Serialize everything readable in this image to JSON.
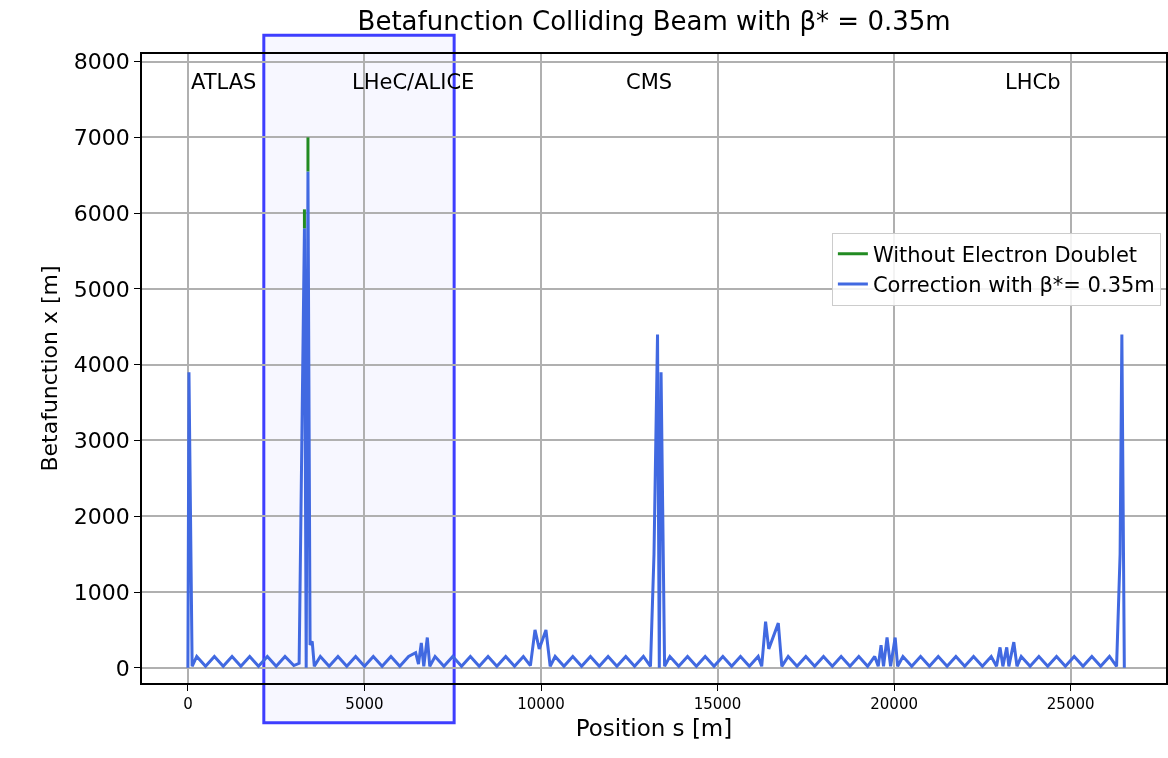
{
  "chart_data": {
    "type": "line",
    "title": "Betafunction Colliding Beam with β* = 0.35m",
    "xlabel": "Position s [m]",
    "ylabel": "Betafunction x [m]",
    "series": [
      {
        "name": "Without Electron Doublet",
        "color": "#228b22",
        "x": [
          3300,
          3300,
          3350,
          3400,
          3400
        ],
        "values": [
          5800,
          6050,
          null,
          6550,
          7000
        ]
      },
      {
        "name": "Correction with β*= 0.35m",
        "color": "#4169e1",
        "x": [
          0,
          30,
          120,
          250,
          500,
          750,
          1000,
          1250,
          1500,
          1750,
          2000,
          2250,
          2500,
          2750,
          3000,
          3150,
          3300,
          3350,
          3400,
          3460,
          3520,
          3580,
          3750,
          4000,
          4250,
          4500,
          4750,
          5000,
          5250,
          5500,
          5750,
          6000,
          6250,
          6450,
          6530,
          6610,
          6680,
          6780,
          6850,
          7000,
          7250,
          7500,
          7750,
          8000,
          8250,
          8500,
          8750,
          9000,
          9250,
          9500,
          9700,
          9830,
          9950,
          10140,
          10260,
          10400,
          10650,
          10900,
          11150,
          11400,
          11650,
          11900,
          12150,
          12400,
          12650,
          12900,
          13100,
          13200,
          13300,
          13350,
          13400,
          13500,
          13650,
          13900,
          14150,
          14400,
          14650,
          14900,
          15150,
          15400,
          15650,
          15900,
          16150,
          16250,
          16360,
          16450,
          16720,
          16820,
          17000,
          17250,
          17500,
          17750,
          18000,
          18250,
          18500,
          18750,
          19000,
          19250,
          19450,
          19550,
          19630,
          19700,
          19800,
          19900,
          20030,
          20100,
          20250,
          20500,
          20750,
          21000,
          21250,
          21500,
          21750,
          22000,
          22250,
          22500,
          22750,
          22900,
          23000,
          23080,
          23190,
          23250,
          23390,
          23480,
          23600,
          23850,
          24100,
          24350,
          24600,
          24850,
          25100,
          25350,
          25600,
          25850,
          26100,
          26300,
          26400,
          26450,
          26520
        ],
        "values": [
          0,
          3900,
          20,
          150,
          20,
          150,
          20,
          150,
          20,
          150,
          20,
          150,
          20,
          150,
          30,
          60,
          5800,
          0,
          6550,
          300,
          350,
          20,
          150,
          20,
          150,
          20,
          150,
          20,
          150,
          20,
          150,
          20,
          150,
          200,
          50,
          330,
          20,
          400,
          20,
          150,
          20,
          150,
          20,
          150,
          20,
          150,
          20,
          150,
          20,
          150,
          30,
          500,
          250,
          500,
          20,
          150,
          20,
          150,
          20,
          150,
          20,
          150,
          20,
          150,
          20,
          150,
          20,
          1500,
          4400,
          0,
          3900,
          20,
          150,
          20,
          150,
          20,
          150,
          20,
          150,
          20,
          150,
          20,
          150,
          20,
          610,
          250,
          590,
          20,
          150,
          20,
          150,
          20,
          150,
          20,
          150,
          20,
          150,
          20,
          150,
          20,
          300,
          20,
          400,
          20,
          400,
          20,
          150,
          20,
          150,
          20,
          150,
          20,
          150,
          20,
          150,
          20,
          150,
          20,
          270,
          20,
          270,
          20,
          340,
          20,
          150,
          20,
          150,
          20,
          150,
          20,
          150,
          20,
          150,
          20,
          150,
          20,
          1500,
          4400,
          0
        ]
      }
    ],
    "xlim": [
      -1300,
      27700
    ],
    "xticks": [
      0,
      5000,
      10000,
      15000,
      20000,
      25000
    ],
    "ylim": [
      -200,
      8100
    ],
    "yticks": [
      0,
      1000,
      2000,
      3000,
      4000,
      5000,
      6000,
      7000,
      8000
    ],
    "grid": true,
    "legend": "right",
    "line_style": "solid",
    "marker": "none",
    "bands": [
      {
        "axis": "x",
        "from": 2150,
        "to": 7540,
        "color": "#2a2aff"
      }
    ],
    "annotations": [
      "ATLAS",
      "LHeC/ALICE",
      "CMS",
      "LHCb"
    ]
  }
}
